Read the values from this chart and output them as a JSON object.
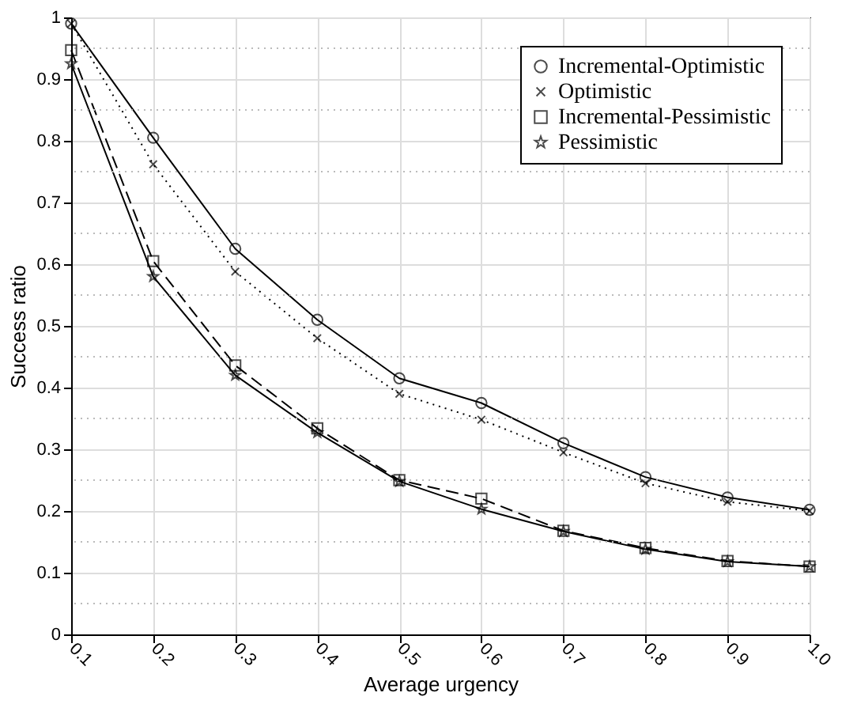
{
  "chart_data": {
    "type": "line",
    "xlabel": "Average urgency",
    "ylabel": "Success ratio",
    "x": [
      0.1,
      0.2,
      0.3,
      0.4,
      0.5,
      0.6,
      0.7,
      0.8,
      0.9,
      1.0
    ],
    "series": [
      {
        "name": "Incremental-Optimistic",
        "color": "#000000",
        "marker": "circle",
        "line_style": "solid",
        "values": [
          0.99,
          0.805,
          0.625,
          0.51,
          0.415,
          0.375,
          0.31,
          0.255,
          0.222,
          0.202
        ]
      },
      {
        "name": "Optimistic",
        "color": "#000000",
        "marker": "cross",
        "line_style": "dotted",
        "values": [
          0.99,
          0.762,
          0.588,
          0.48,
          0.39,
          0.348,
          0.295,
          0.245,
          0.215,
          0.2
        ]
      },
      {
        "name": "Incremental-Pessimistic",
        "color": "#000000",
        "marker": "square",
        "line_style": "dashed",
        "values": [
          0.947,
          0.605,
          0.436,
          0.334,
          0.25,
          0.22,
          0.168,
          0.14,
          0.119,
          0.11
        ]
      },
      {
        "name": "Pessimistic",
        "color": "#000000",
        "marker": "star",
        "line_style": "solid",
        "values": [
          0.925,
          0.58,
          0.42,
          0.327,
          0.248,
          0.203,
          0.167,
          0.138,
          0.118,
          0.11
        ]
      }
    ],
    "xlim": [
      0.1,
      1.0
    ],
    "xticks": [
      0.1,
      0.2,
      0.3,
      0.4,
      0.5,
      0.6,
      0.7,
      0.8,
      0.9,
      {
        "value": 1.0,
        "label": "1.0"
      }
    ],
    "ylim": [
      0,
      1
    ],
    "yticks": [
      0,
      0.1,
      0.2,
      0.3,
      0.4,
      0.5,
      0.6,
      0.7,
      0.8,
      0.9,
      1
    ],
    "grid": true,
    "legend": "top right"
  }
}
